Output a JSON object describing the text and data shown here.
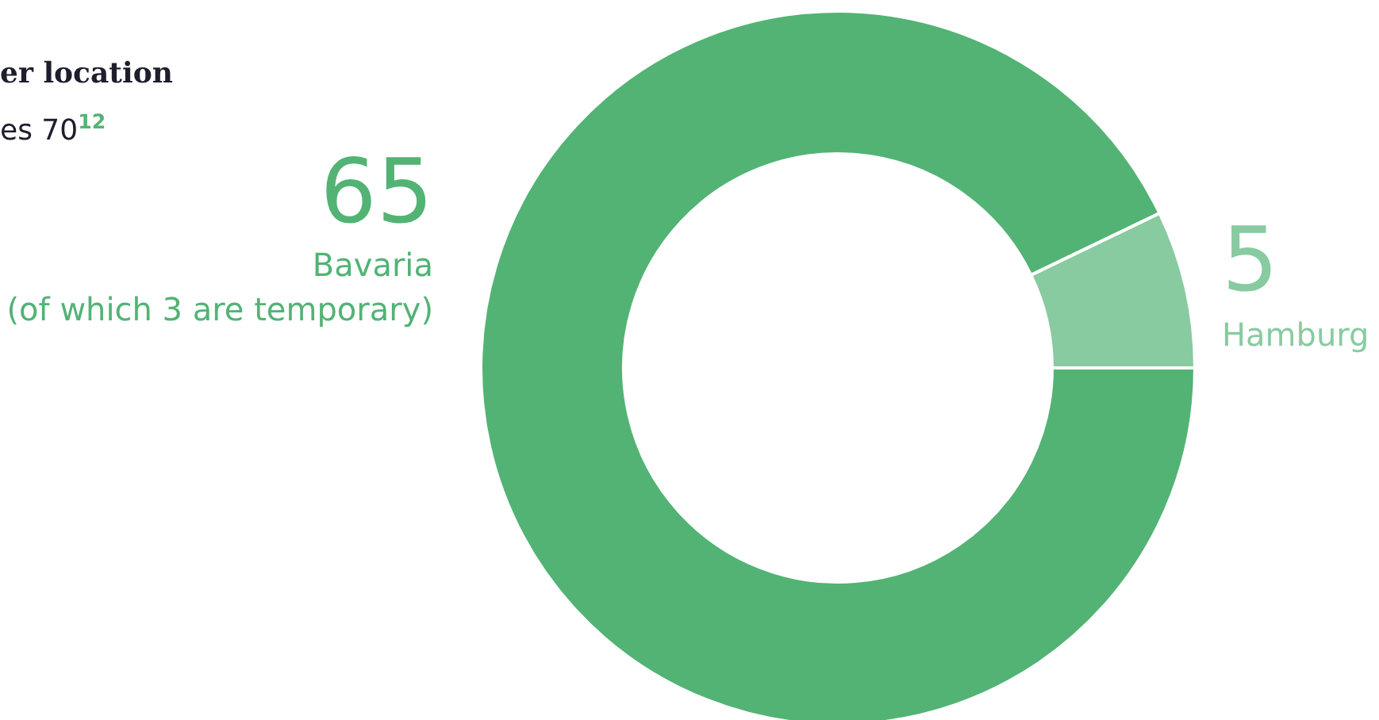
{
  "chart_data": {
    "type": "donut",
    "title": "er location",
    "subtitle": "es 70$^{12}$",
    "categories": [
      "Hamburg",
      "Bavaria"
    ],
    "values": [
      5,
      65
    ],
    "colors": [
      "#88cba0",
      "#52b375"
    ],
    "data_labels": true,
    "annotations": [
      "(of which 3 are temporary)"
    ]
  }
}
